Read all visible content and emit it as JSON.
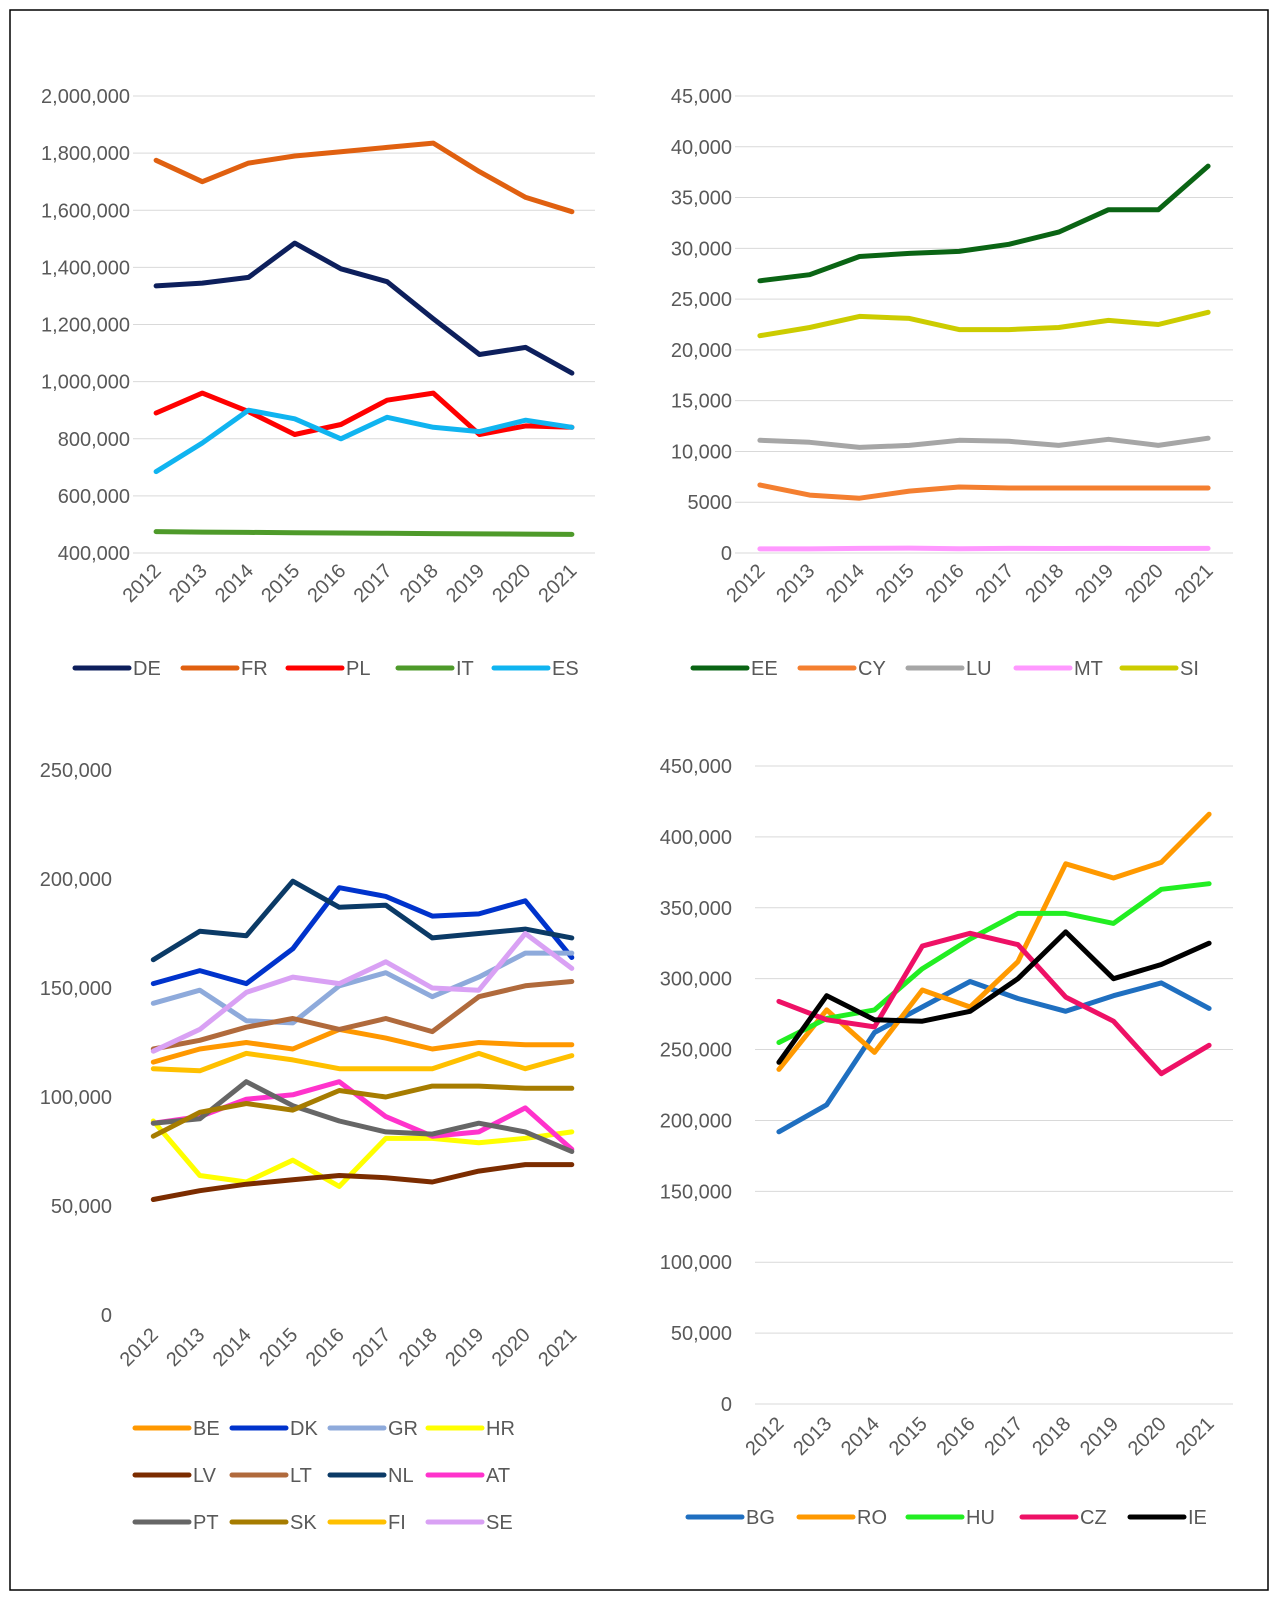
{
  "chart_data": [
    {
      "type": "line",
      "title": "",
      "xlabel": "",
      "ylabel": "",
      "categories": [
        "2012",
        "2013",
        "2014",
        "2015",
        "2016",
        "2017",
        "2018",
        "2019",
        "2020",
        "2021"
      ],
      "ylim": [
        400000,
        2000000
      ],
      "yticks": [
        400000,
        600000,
        800000,
        1000000,
        1200000,
        1400000,
        1600000,
        1800000,
        2000000
      ],
      "ytick_labels": [
        "400,000",
        "600,000",
        "800,000",
        "1,000,000",
        "1,200,000",
        "1,400,000",
        "1,600,000",
        "1,800,000",
        "2,000,000"
      ],
      "grid": true,
      "legend_position": "bottom",
      "series": [
        {
          "name": "DE",
          "color": "#0d1f5c",
          "values": [
            1335000,
            1345000,
            1365000,
            1485000,
            1395000,
            1350000,
            1220000,
            1095000,
            1120000,
            1030000
          ]
        },
        {
          "name": "FR",
          "color": "#e06010",
          "values": [
            1775000,
            1700000,
            1765000,
            1790000,
            1805000,
            1820000,
            1835000,
            1735000,
            1645000,
            1595000
          ]
        },
        {
          "name": "PL",
          "color": "#ff0000",
          "values": [
            890000,
            960000,
            895000,
            815000,
            850000,
            935000,
            960000,
            815000,
            845000,
            840000
          ]
        },
        {
          "name": "IT",
          "color": "#4e9a2a",
          "values": [
            475000,
            473000,
            472000,
            471000,
            470000,
            469000,
            468000,
            467000,
            466000,
            465000
          ]
        },
        {
          "name": "ES",
          "color": "#10b4f0",
          "values": [
            685000,
            785000,
            900000,
            870000,
            800000,
            875000,
            840000,
            825000,
            865000,
            840000
          ]
        }
      ]
    },
    {
      "type": "line",
      "title": "",
      "xlabel": "",
      "ylabel": "",
      "categories": [
        "2012",
        "2013",
        "2014",
        "2015",
        "2016",
        "2017",
        "2018",
        "2019",
        "2020",
        "2021"
      ],
      "ylim": [
        0,
        45000
      ],
      "yticks": [
        0,
        5000,
        10000,
        15000,
        20000,
        25000,
        30000,
        35000,
        40000,
        45000
      ],
      "ytick_labels": [
        "0",
        "5000",
        "10,000",
        "15,000",
        "20,000",
        "25,000",
        "30,000",
        "35,000",
        "40,000",
        "45,000"
      ],
      "grid": true,
      "legend_position": "bottom",
      "series": [
        {
          "name": "EE",
          "color": "#0a6414",
          "values": [
            26800,
            27400,
            29200,
            29500,
            29700,
            30400,
            31600,
            33800,
            33800,
            38100
          ]
        },
        {
          "name": "CY",
          "color": "#f47f30",
          "values": [
            6700,
            5700,
            5400,
            6100,
            6500,
            6400,
            6400,
            6400,
            6400,
            6400
          ]
        },
        {
          "name": "LU",
          "color": "#a6a6a6",
          "values": [
            11100,
            10900,
            10400,
            10600,
            11100,
            11000,
            10600,
            11200,
            10600,
            11300
          ]
        },
        {
          "name": "MT",
          "color": "#ff99ff",
          "values": [
            400,
            400,
            450,
            480,
            420,
            450,
            440,
            450,
            440,
            450
          ]
        },
        {
          "name": "SI",
          "color": "#cccc00",
          "values": [
            21400,
            22200,
            23300,
            23100,
            22000,
            22000,
            22200,
            22900,
            22500,
            23700
          ]
        }
      ]
    },
    {
      "type": "line",
      "title": "",
      "xlabel": "",
      "ylabel": "",
      "categories": [
        "2012",
        "2013",
        "2014",
        "2015",
        "2016",
        "2017",
        "2018",
        "2019",
        "2020",
        "2021"
      ],
      "ylim": [
        0,
        250000
      ],
      "yticks": [
        0,
        50000,
        100000,
        150000,
        200000,
        250000
      ],
      "ytick_labels": [
        "0",
        "50,000",
        "100,000",
        "150,000",
        "200,000",
        "250,000"
      ],
      "grid": false,
      "legend_position": "bottom",
      "series": [
        {
          "name": "BE",
          "color": "#ff9800",
          "values": [
            116000,
            122000,
            125000,
            122000,
            131000,
            127000,
            122000,
            125000,
            124000,
            124000
          ]
        },
        {
          "name": "DK",
          "color": "#0033cc",
          "values": [
            152000,
            158000,
            152000,
            168000,
            196000,
            192000,
            183000,
            184000,
            190000,
            164000
          ]
        },
        {
          "name": "GR",
          "color": "#8eaadb",
          "values": [
            143000,
            149000,
            135000,
            134000,
            151000,
            157000,
            146000,
            155000,
            166000,
            166000
          ]
        },
        {
          "name": "HR",
          "color": "#ffff00",
          "values": [
            89000,
            64000,
            61000,
            71000,
            59000,
            81000,
            81000,
            79000,
            81000,
            84000
          ]
        },
        {
          "name": "LV",
          "color": "#7b2c00",
          "values": [
            53000,
            57000,
            60000,
            62000,
            64000,
            63000,
            61000,
            66000,
            69000,
            69000
          ]
        },
        {
          "name": "LT",
          "color": "#b06a3c",
          "values": [
            122000,
            126000,
            132000,
            136000,
            131000,
            136000,
            130000,
            146000,
            151000,
            153000
          ]
        },
        {
          "name": "NL",
          "color": "#0b3a66",
          "values": [
            163000,
            176000,
            174000,
            199000,
            187000,
            188000,
            173000,
            175000,
            177000,
            173000
          ]
        },
        {
          "name": "AT",
          "color": "#ff33cc",
          "values": [
            88000,
            91000,
            99000,
            101000,
            107000,
            91000,
            82000,
            84000,
            95000,
            76000
          ]
        },
        {
          "name": "PT",
          "color": "#666666",
          "values": [
            88000,
            90000,
            107000,
            96000,
            89000,
            84000,
            83000,
            88000,
            84000,
            75000
          ]
        },
        {
          "name": "SK",
          "color": "#a67c00",
          "values": [
            82000,
            93000,
            97000,
            94000,
            103000,
            100000,
            105000,
            105000,
            104000,
            104000
          ]
        },
        {
          "name": "FI",
          "color": "#ffc000",
          "values": [
            113000,
            112000,
            120000,
            117000,
            113000,
            113000,
            113000,
            120000,
            113000,
            119000
          ]
        },
        {
          "name": "SE",
          "color": "#d9a1f4",
          "values": [
            121000,
            131000,
            148000,
            155000,
            152000,
            162000,
            150000,
            149000,
            175000,
            159000
          ]
        }
      ]
    },
    {
      "type": "line",
      "title": "",
      "xlabel": "",
      "ylabel": "",
      "categories": [
        "2012",
        "2013",
        "2014",
        "2015",
        "2016",
        "2017",
        "2018",
        "2019",
        "2020",
        "2021"
      ],
      "ylim": [
        0,
        450000
      ],
      "yticks": [
        0,
        50000,
        100000,
        150000,
        200000,
        250000,
        300000,
        350000,
        400000,
        450000
      ],
      "ytick_labels": [
        "0",
        "50,000",
        "100,000",
        "150,000",
        "200,000",
        "250,000",
        "300,000",
        "350,000",
        "400,000",
        "450,000"
      ],
      "grid": true,
      "legend_position": "bottom",
      "series": [
        {
          "name": "BG",
          "color": "#1f6fc0",
          "values": [
            192000,
            211000,
            262000,
            280000,
            298000,
            286000,
            277000,
            288000,
            297000,
            279000
          ]
        },
        {
          "name": "RO",
          "color": "#ff9900",
          "values": [
            236000,
            278000,
            248000,
            292000,
            280000,
            312000,
            381000,
            371000,
            382000,
            416000
          ]
        },
        {
          "name": "HU",
          "color": "#22ee22",
          "values": [
            255000,
            272000,
            278000,
            307000,
            328000,
            346000,
            346000,
            339000,
            363000,
            367000
          ]
        },
        {
          "name": "CZ",
          "color": "#ee1166",
          "values": [
            284000,
            271000,
            266000,
            323000,
            332000,
            324000,
            287000,
            270000,
            233000,
            253000
          ]
        },
        {
          "name": "IE",
          "color": "#000000",
          "values": [
            241000,
            288000,
            271000,
            270000,
            277000,
            300000,
            333000,
            300000,
            310000,
            325000
          ]
        }
      ]
    }
  ]
}
